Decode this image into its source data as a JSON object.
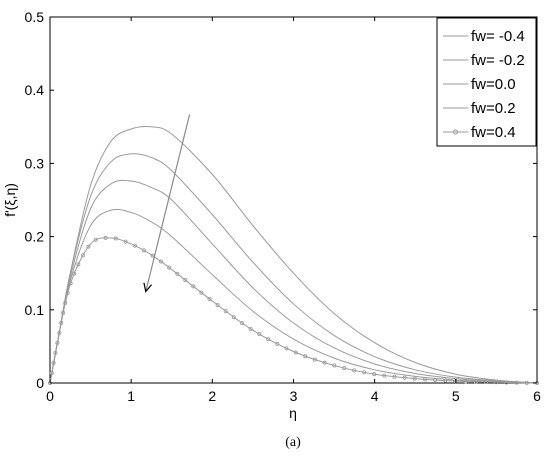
{
  "chart_data": {
    "type": "line",
    "xlabel": "η",
    "ylabel": "f'(ξ,η)",
    "xlim": [
      0,
      6
    ],
    "ylim": [
      0,
      0.5
    ],
    "x_ticks": [
      "0",
      "1",
      "2",
      "3",
      "4",
      "5",
      "6"
    ],
    "y_ticks": [
      "0",
      "0.1",
      "0.2",
      "0.3",
      "0.4",
      "0.5"
    ],
    "caption": "(a)",
    "grid": false,
    "legend_position": "top-right",
    "line_color": "#9a9a9a",
    "series": [
      {
        "name": "fw= -0.4",
        "marker": "none",
        "x": [
          0,
          0.1,
          0.25,
          0.5,
          0.75,
          1.0,
          1.25,
          1.5,
          2.0,
          2.5,
          3.0,
          3.5,
          4.0,
          4.5,
          5.0,
          5.5,
          6.0
        ],
        "y": [
          0,
          0.06,
          0.15,
          0.27,
          0.33,
          0.347,
          0.35,
          0.34,
          0.285,
          0.215,
          0.15,
          0.095,
          0.055,
          0.028,
          0.012,
          0.004,
          0.0
        ]
      },
      {
        "name": "fw= -0.2",
        "marker": "none",
        "x": [
          0,
          0.1,
          0.25,
          0.5,
          0.75,
          1.0,
          1.25,
          1.5,
          2.0,
          2.5,
          3.0,
          3.5,
          4.0,
          4.5,
          5.0,
          5.5,
          6.0
        ],
        "y": [
          0,
          0.06,
          0.15,
          0.255,
          0.302,
          0.313,
          0.308,
          0.29,
          0.23,
          0.165,
          0.108,
          0.065,
          0.036,
          0.018,
          0.008,
          0.003,
          0.0
        ]
      },
      {
        "name": "fw=0.0",
        "marker": "none",
        "x": [
          0,
          0.1,
          0.25,
          0.5,
          0.75,
          1.0,
          1.25,
          1.5,
          2.0,
          2.5,
          3.0,
          3.5,
          4.0,
          4.5,
          5.0,
          5.5,
          6.0
        ],
        "y": [
          0,
          0.06,
          0.145,
          0.238,
          0.272,
          0.276,
          0.267,
          0.25,
          0.19,
          0.13,
          0.082,
          0.048,
          0.026,
          0.013,
          0.006,
          0.002,
          0.0
        ]
      },
      {
        "name": "fw=0.2",
        "marker": "none",
        "x": [
          0,
          0.1,
          0.25,
          0.5,
          0.75,
          1.0,
          1.25,
          1.5,
          2.0,
          2.5,
          3.0,
          3.5,
          4.0,
          4.5,
          5.0,
          5.5,
          6.0
        ],
        "y": [
          0,
          0.06,
          0.14,
          0.215,
          0.236,
          0.233,
          0.22,
          0.2,
          0.148,
          0.098,
          0.06,
          0.034,
          0.018,
          0.009,
          0.004,
          0.0015,
          0.0
        ]
      },
      {
        "name": "fw=0.4",
        "marker": "circle",
        "x": [
          0,
          0.1,
          0.25,
          0.5,
          0.75,
          1.0,
          1.25,
          1.5,
          2.0,
          2.5,
          3.0,
          3.5,
          4.0,
          4.5,
          5.0,
          5.5,
          6.0
        ],
        "y": [
          0,
          0.06,
          0.135,
          0.19,
          0.198,
          0.19,
          0.175,
          0.155,
          0.112,
          0.072,
          0.043,
          0.024,
          0.012,
          0.006,
          0.0025,
          0.001,
          0.0
        ]
      }
    ],
    "annotations": [
      {
        "type": "arrow",
        "direction": "increasing fw",
        "from": [
          1.72,
          0.367
        ],
        "to": [
          1.18,
          0.125
        ]
      }
    ]
  }
}
